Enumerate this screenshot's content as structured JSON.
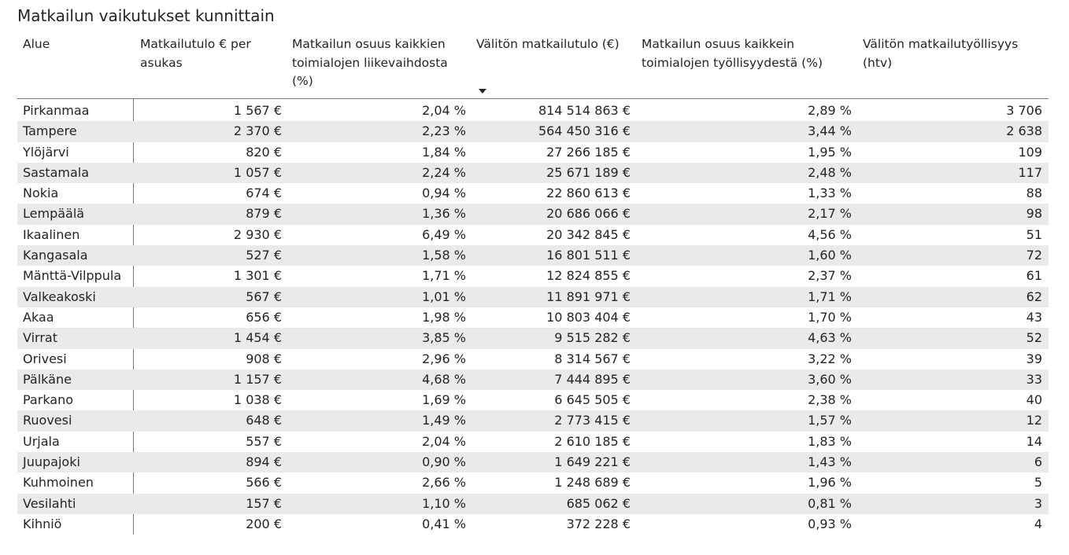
{
  "title": "Matkailun vaikutukset kunnittain",
  "chart_data": {
    "type": "table",
    "title": "Matkailun vaikutukset kunnittain",
    "sorted_by": "Välitön matkailutulo (€)",
    "sort_direction": "descending",
    "columns": [
      "Alue",
      "Matkailutulo € per asukas",
      "Matkailun osuus kaikkien toimialojen liikevaihdosta (%)",
      "Välitön matkailutulo (€)",
      "Matkailun osuus kaikkein toimialojen työllisyydestä (%)",
      "Välitön matkailutyöllisyys (htv)"
    ],
    "rows": [
      [
        "Pirkanmaa",
        "1 567 €",
        "2,04 %",
        "814 514 863 €",
        "2,89 %",
        "3 706"
      ],
      [
        "Tampere",
        "2 370 €",
        "2,23 %",
        "564 450 316 €",
        "3,44 %",
        "2 638"
      ],
      [
        "Ylöjärvi",
        "820 €",
        "1,84 %",
        "27 266 185 €",
        "1,95 %",
        "109"
      ],
      [
        "Sastamala",
        "1 057 €",
        "2,24 %",
        "25 671 189 €",
        "2,48 %",
        "117"
      ],
      [
        "Nokia",
        "674 €",
        "0,94 %",
        "22 860 613 €",
        "1,33 %",
        "88"
      ],
      [
        "Lempäälä",
        "879 €",
        "1,36 %",
        "20 686 066 €",
        "2,17 %",
        "98"
      ],
      [
        "Ikaalinen",
        "2 930 €",
        "6,49 %",
        "20 342 845 €",
        "4,56 %",
        "51"
      ],
      [
        "Kangasala",
        "527 €",
        "1,58 %",
        "16 801 511 €",
        "1,60 %",
        "72"
      ],
      [
        "Mänttä-Vilppula",
        "1 301 €",
        "1,71 %",
        "12 824 855 €",
        "2,37 %",
        "61"
      ],
      [
        "Valkeakoski",
        "567 €",
        "1,01 %",
        "11 891 971 €",
        "1,71 %",
        "62"
      ],
      [
        "Akaa",
        "656 €",
        "1,98 %",
        "10 803 404 €",
        "1,70 %",
        "43"
      ],
      [
        "Virrat",
        "1 454 €",
        "3,85 %",
        "9 515 282 €",
        "4,63 %",
        "52"
      ],
      [
        "Orivesi",
        "908 €",
        "2,96 %",
        "8 314 567 €",
        "3,22 %",
        "39"
      ],
      [
        "Pälkäne",
        "1 157 €",
        "4,68 %",
        "7 444 895 €",
        "3,60 %",
        "33"
      ],
      [
        "Parkano",
        "1 038 €",
        "1,69 %",
        "6 645 505 €",
        "2,38 %",
        "40"
      ],
      [
        "Ruovesi",
        "648 €",
        "1,49 %",
        "2 773 415 €",
        "1,57 %",
        "12"
      ],
      [
        "Urjala",
        "557 €",
        "2,04 %",
        "2 610 185 €",
        "1,83 %",
        "14"
      ],
      [
        "Juupajoki",
        "894 €",
        "0,90 %",
        "1 649 221 €",
        "1,43 %",
        "6"
      ],
      [
        "Kuhmoinen",
        "566 €",
        "2,66 %",
        "1 248 689 €",
        "1,96 %",
        "5"
      ],
      [
        "Vesilahti",
        "157 €",
        "1,10 %",
        "685 062 €",
        "0,81 %",
        "3"
      ],
      [
        "Kihniö",
        "200 €",
        "0,41 %",
        "372 228 €",
        "0,93 %",
        "4"
      ]
    ]
  },
  "colors": {
    "accent": "#118dff",
    "row_stripe": "#eaeaea",
    "text": "#252423"
  }
}
